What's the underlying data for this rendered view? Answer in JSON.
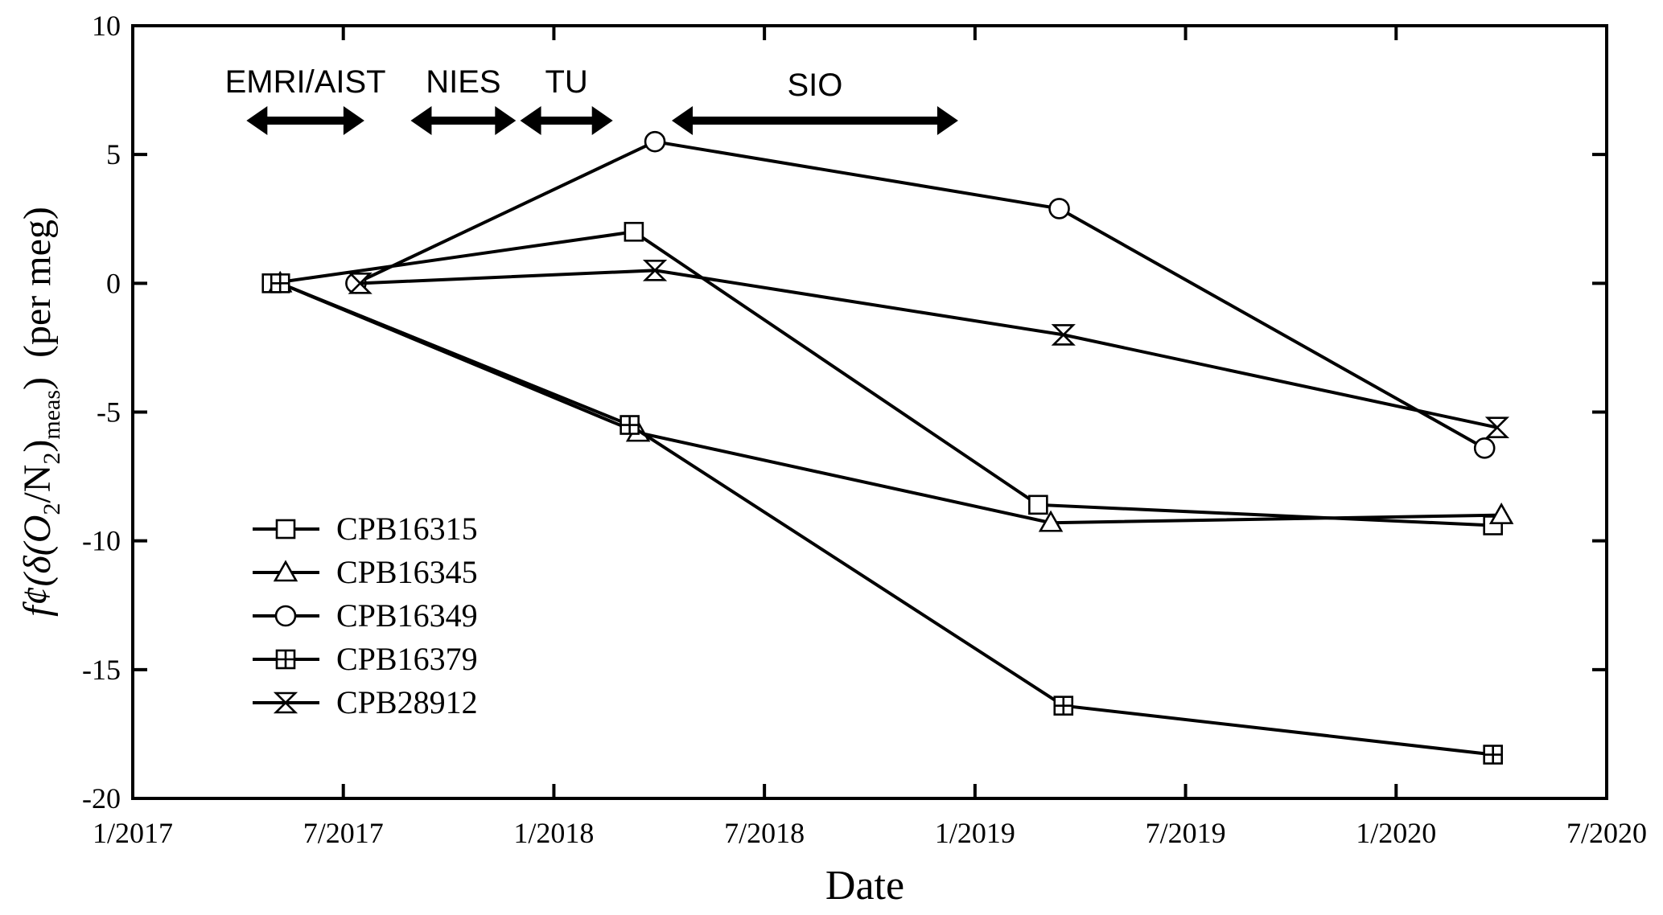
{
  "chart_data": {
    "type": "line",
    "xlabel": "Date",
    "ylabel": {
      "prefix": "f¢(δ(O",
      "sub1": "2",
      "mid": "/N",
      "sub2": "2",
      "close": ")",
      "sub3": "meas",
      "end": ")",
      "units": "(per meg)"
    },
    "xlim": [
      2017.0,
      2020.5
    ],
    "ylim": [
      -20,
      10
    ],
    "grid": false,
    "legend_position": "bottom-left",
    "x_ticks": [
      {
        "value": 2017.0,
        "label": "1/2017"
      },
      {
        "value": 2017.5,
        "label": "7/2017"
      },
      {
        "value": 2018.0,
        "label": "1/2018"
      },
      {
        "value": 2018.5,
        "label": "7/2018"
      },
      {
        "value": 2019.0,
        "label": "1/2019"
      },
      {
        "value": 2019.5,
        "label": "7/2019"
      },
      {
        "value": 2020.0,
        "label": "1/2020"
      },
      {
        "value": 2020.5,
        "label": "7/2020"
      }
    ],
    "y_ticks": [
      {
        "value": 10,
        "label": "10"
      },
      {
        "value": 5,
        "label": "5"
      },
      {
        "value": 0,
        "label": "0"
      },
      {
        "value": -5,
        "label": "-5"
      },
      {
        "value": -10,
        "label": "-10"
      },
      {
        "value": -15,
        "label": "-15"
      },
      {
        "value": -20,
        "label": "-20"
      }
    ],
    "series": [
      {
        "name": "CPB16315",
        "marker": "square",
        "x": [
          2017.33,
          2018.19,
          2019.15,
          2020.23
        ],
        "y": [
          0,
          2.0,
          -8.6,
          -9.4
        ]
      },
      {
        "name": "CPB16345",
        "marker": "triangle",
        "x": [
          2017.35,
          2018.2,
          2019.18,
          2020.25
        ],
        "y": [
          0,
          -5.8,
          -9.3,
          -9.0
        ]
      },
      {
        "name": "CPB16349",
        "marker": "circle",
        "x": [
          2017.53,
          2018.24,
          2019.2,
          2020.21
        ],
        "y": [
          0,
          5.5,
          2.9,
          -6.4
        ]
      },
      {
        "name": "CPB16379",
        "marker": "crossed-square",
        "x": [
          2017.35,
          2018.18,
          2019.21,
          2020.23
        ],
        "y": [
          0,
          -5.5,
          -16.4,
          -18.3
        ]
      },
      {
        "name": "CPB28912",
        "marker": "hourglass",
        "x": [
          2017.54,
          2018.24,
          2019.21,
          2020.24
        ],
        "y": [
          0,
          0.5,
          -2.0,
          -5.6
        ]
      }
    ],
    "annotations": [
      {
        "label": "EMRI/AIST",
        "x_start": 2017.27,
        "x_end": 2017.55
      },
      {
        "label": "NIES",
        "x_start": 2017.66,
        "x_end": 2017.91
      },
      {
        "label": "TU",
        "x_start": 2017.92,
        "x_end": 2018.14
      },
      {
        "label": "SIO",
        "x_start": 2018.28,
        "x_end": 2018.96
      }
    ]
  }
}
